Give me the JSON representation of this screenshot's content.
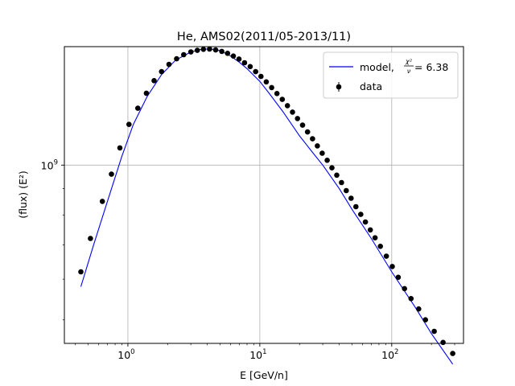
{
  "chart_data": {
    "type": "scatter",
    "title": "He, AMS02(2011/05-2013/11)",
    "xlabel": "E [GeV/n]",
    "ylabel": "(flux)  (E²)",
    "xscale": "log",
    "yscale": "log",
    "xlim": [
      0.33,
      350
    ],
    "ylim": [
      450000000,
      1700000000
    ],
    "grid": true,
    "legend_position": "top-right",
    "x_ticks": [
      {
        "value": 1,
        "base": "10",
        "exp": "0"
      },
      {
        "value": 10,
        "base": "10",
        "exp": "1"
      },
      {
        "value": 100,
        "base": "10",
        "exp": "2"
      }
    ],
    "y_ticks": [
      {
        "value": 1000000000,
        "base": "10",
        "exp": "9"
      }
    ],
    "legend": {
      "model_label": "model, ",
      "chi_num": "χ²",
      "chi_den": "ν",
      "model_value": " = 6.38",
      "data_label": "data"
    },
    "series": [
      {
        "name": "data",
        "kind": "markers",
        "color": "#000000",
        "points": [
          [
            0.44,
            620000000
          ],
          [
            0.52,
            720000000
          ],
          [
            0.64,
            850000000
          ],
          [
            0.75,
            960000000
          ],
          [
            0.87,
            1080000000
          ],
          [
            1.02,
            1200000000
          ],
          [
            1.19,
            1290000000
          ],
          [
            1.38,
            1380000000
          ],
          [
            1.58,
            1460000000
          ],
          [
            1.8,
            1520000000
          ],
          [
            2.05,
            1570000000
          ],
          [
            2.34,
            1610000000
          ],
          [
            2.65,
            1640000000
          ],
          [
            3.0,
            1660000000
          ],
          [
            3.36,
            1672000000
          ],
          [
            3.74,
            1680000000
          ],
          [
            4.16,
            1682000000
          ],
          [
            4.63,
            1675000000
          ],
          [
            5.15,
            1664000000
          ],
          [
            5.7,
            1650000000
          ],
          [
            6.3,
            1630000000
          ],
          [
            6.95,
            1608000000
          ],
          [
            7.66,
            1582000000
          ],
          [
            8.45,
            1555000000
          ],
          [
            9.3,
            1520000000
          ],
          [
            10.2,
            1488000000
          ],
          [
            11.2,
            1452000000
          ],
          [
            12.3,
            1415000000
          ],
          [
            13.5,
            1378000000
          ],
          [
            14.8,
            1342000000
          ],
          [
            16.2,
            1305000000
          ],
          [
            17.7,
            1268000000
          ],
          [
            19.3,
            1232000000
          ],
          [
            21.1,
            1196000000
          ],
          [
            23.0,
            1160000000
          ],
          [
            25.1,
            1125000000
          ],
          [
            27.3,
            1090000000
          ],
          [
            29.7,
            1055000000
          ],
          [
            32.4,
            1022000000
          ],
          [
            35.2,
            988000000
          ],
          [
            38.3,
            956000000
          ],
          [
            41.6,
            925000000
          ],
          [
            45.2,
            892000000
          ],
          [
            49.2,
            862000000
          ],
          [
            53.5,
            830000000
          ],
          [
            58.2,
            802000000
          ],
          [
            63.2,
            775000000
          ],
          [
            68.8,
            748000000
          ],
          [
            74.8,
            722000000
          ],
          [
            82.0,
            695000000
          ],
          [
            91.0,
            665000000
          ],
          [
            101.0,
            635000000
          ],
          [
            112.0,
            605000000
          ],
          [
            125.0,
            575000000
          ],
          [
            140.0,
            550000000
          ],
          [
            160.0,
            525000000
          ],
          [
            180.0,
            500000000
          ],
          [
            210.0,
            475000000
          ],
          [
            245.0,
            452000000
          ],
          [
            290.0,
            430000000
          ]
        ]
      },
      {
        "name": "model",
        "kind": "line",
        "color": "#0000ff",
        "points": [
          [
            0.44,
            580000000
          ],
          [
            0.55,
            700000000
          ],
          [
            0.7,
            850000000
          ],
          [
            0.9,
            1040000000
          ],
          [
            1.1,
            1200000000
          ],
          [
            1.4,
            1360000000
          ],
          [
            1.8,
            1500000000
          ],
          [
            2.3,
            1600000000
          ],
          [
            3.0,
            1660000000
          ],
          [
            3.6,
            1680000000
          ],
          [
            4.2,
            1683000000
          ],
          [
            5.0,
            1670000000
          ],
          [
            6.0,
            1630000000
          ],
          [
            7.0,
            1585000000
          ],
          [
            8.0,
            1540000000
          ],
          [
            10.0,
            1455000000
          ],
          [
            12.0,
            1370000000
          ],
          [
            15.0,
            1270000000
          ],
          [
            20.0,
            1140000000
          ],
          [
            25.0,
            1060000000
          ],
          [
            30.0,
            1000000000
          ],
          [
            40.0,
            900000000
          ],
          [
            50.0,
            820000000
          ],
          [
            70.0,
            720000000
          ],
          [
            100.0,
            620000000
          ],
          [
            150.0,
            530000000
          ],
          [
            200.0,
            470000000
          ],
          [
            290.0,
            410000000
          ]
        ]
      }
    ]
  }
}
